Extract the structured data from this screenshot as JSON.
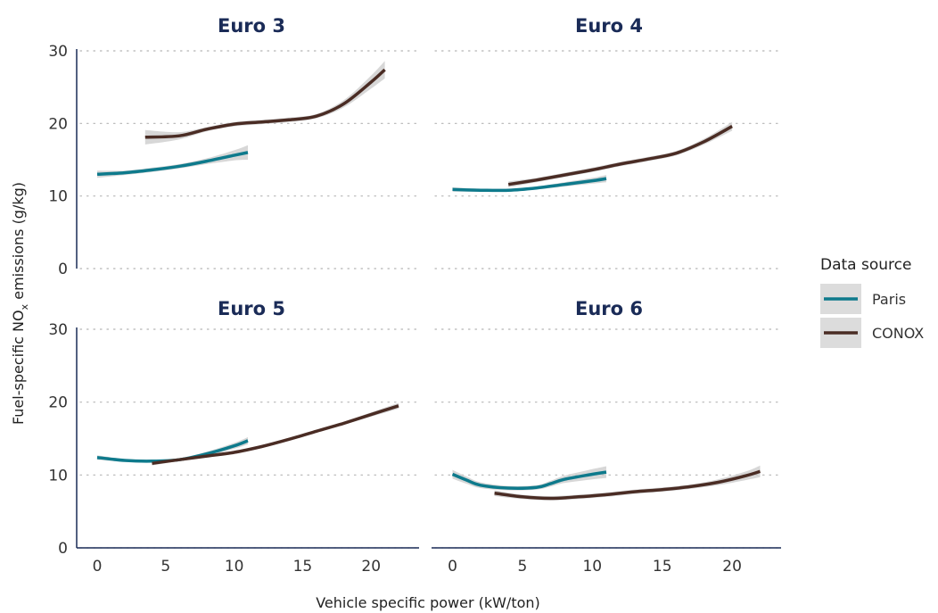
{
  "chart_data": {
    "type": "line",
    "xlabel": "Vehicle specific power (kW/ton)",
    "ylabel_main": "Fuel-specific NO",
    "ylabel_sub": "x",
    "ylabel_rest": " emissions (g/kg)",
    "xlim": [
      -1.5,
      23.5
    ],
    "ylim": [
      0,
      30
    ],
    "x_ticks": [
      0,
      5,
      10,
      15,
      20
    ],
    "y_ticks": [
      0,
      10,
      20,
      30
    ],
    "grid": "horizontal dotted",
    "legend": {
      "title": "Data source",
      "placement": "right",
      "items": [
        {
          "label": "Paris",
          "color": "#0e7a8c"
        },
        {
          "label": "CONOX",
          "color": "#4a2c24"
        }
      ]
    },
    "panels": [
      {
        "title": "Euro 3",
        "series": [
          {
            "name": "Paris",
            "color": "#0e7a8c",
            "x": [
              0,
              2,
              4,
              6,
              8,
              10,
              11
            ],
            "y": [
              13.0,
              13.2,
              13.6,
              14.1,
              14.8,
              15.6,
              16.0
            ],
            "band": [
              0.5,
              0.3,
              0.3,
              0.3,
              0.4,
              0.7,
              1.0
            ]
          },
          {
            "name": "CONOX",
            "color": "#4a2c24",
            "x": [
              3.5,
              6,
              8,
              10,
              12,
              14,
              16,
              18,
              20,
              21
            ],
            "y": [
              18.1,
              18.3,
              19.2,
              19.9,
              20.2,
              20.5,
              21.0,
              22.7,
              25.7,
              27.4
            ],
            "band": [
              1.0,
              0.5,
              0.3,
              0.3,
              0.3,
              0.3,
              0.3,
              0.5,
              0.9,
              1.2
            ]
          }
        ]
      },
      {
        "title": "Euro 4",
        "series": [
          {
            "name": "Paris",
            "color": "#0e7a8c",
            "x": [
              0,
              2,
              4,
              6,
              8,
              10,
              11
            ],
            "y": [
              10.9,
              10.8,
              10.8,
              11.1,
              11.6,
              12.1,
              12.4
            ],
            "band": [
              0.3,
              0.2,
              0.2,
              0.2,
              0.3,
              0.4,
              0.5
            ]
          },
          {
            "name": "CONOX",
            "color": "#4a2c24",
            "x": [
              4,
              6,
              8,
              10,
              12,
              14,
              16,
              18,
              20
            ],
            "y": [
              11.6,
              12.2,
              12.9,
              13.6,
              14.4,
              15.1,
              15.9,
              17.5,
              19.6
            ],
            "band": [
              0.4,
              0.3,
              0.3,
              0.3,
              0.3,
              0.3,
              0.3,
              0.4,
              0.6
            ]
          }
        ]
      },
      {
        "title": "Euro 5",
        "series": [
          {
            "name": "Paris",
            "color": "#0e7a8c",
            "x": [
              0,
              2,
              4,
              6,
              8,
              10,
              11
            ],
            "y": [
              12.4,
              12.0,
              11.9,
              12.1,
              12.9,
              14.0,
              14.7
            ],
            "band": [
              0.3,
              0.2,
              0.2,
              0.2,
              0.3,
              0.4,
              0.5
            ]
          },
          {
            "name": "CONOX",
            "color": "#4a2c24",
            "x": [
              4,
              6,
              8,
              10,
              12,
              14,
              16,
              18,
              20,
              22
            ],
            "y": [
              11.6,
              12.1,
              12.6,
              13.1,
              13.9,
              14.9,
              16.0,
              17.1,
              18.3,
              19.5
            ],
            "band": [
              0.3,
              0.2,
              0.2,
              0.2,
              0.2,
              0.2,
              0.2,
              0.2,
              0.3,
              0.4
            ]
          }
        ]
      },
      {
        "title": "Euro 6",
        "series": [
          {
            "name": "Paris",
            "color": "#0e7a8c",
            "x": [
              0,
              1,
              2,
              4,
              6,
              7,
              8,
              10,
              11
            ],
            "y": [
              10.1,
              9.3,
              8.6,
              8.2,
              8.3,
              8.8,
              9.4,
              10.1,
              10.4
            ],
            "band": [
              0.6,
              0.5,
              0.4,
              0.3,
              0.3,
              0.4,
              0.5,
              0.7,
              0.8
            ]
          },
          {
            "name": "CONOX",
            "color": "#4a2c24",
            "x": [
              3,
              5,
              7,
              9,
              11,
              13,
              15,
              17,
              19,
              21,
              22
            ],
            "y": [
              7.5,
              7.0,
              6.8,
              7.0,
              7.3,
              7.7,
              8.0,
              8.4,
              9.0,
              9.9,
              10.5
            ],
            "band": [
              0.4,
              0.3,
              0.3,
              0.3,
              0.3,
              0.3,
              0.3,
              0.3,
              0.4,
              0.6,
              0.8
            ]
          }
        ]
      }
    ]
  }
}
